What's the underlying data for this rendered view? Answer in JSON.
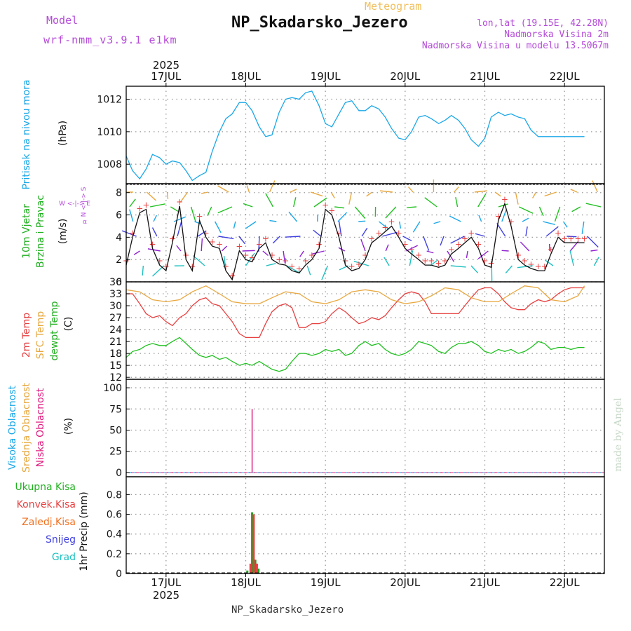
{
  "header": {
    "model_label": "Model",
    "model_name": "wrf-nmm_v3.9.1 e1km",
    "subtitle": "Meteogram",
    "title": "NP_Skadarsko_Jezero",
    "lonlat": "lon,lat (19.15E, 42.28N)",
    "altitude": "Nadmorska Visina 2m",
    "model_altitude": "Nadmorska Visina u modelu 13.5067m"
  },
  "footer": {
    "station": "NP_Skadarsko_Jezero",
    "credit": "made by Angel"
  },
  "time_axis": {
    "year": "2025",
    "day_labels": [
      "17JUL",
      "18JUL",
      "19JUL",
      "20JUL",
      "21JUL",
      "22JUL"
    ],
    "day_positions": [
      0.5,
      1.5,
      2.5,
      3.5,
      4.5,
      5.5
    ],
    "range": [
      0,
      6
    ]
  },
  "panel_labels": {
    "pressure": {
      "name": "Pritisak na nivou mora",
      "unit": "(hPa)"
    },
    "wind": {
      "line1": "10m Vjetar",
      "line2": "Brzina i Pravac",
      "unit": "(m/s)",
      "compass_ns": "N <-|-> S",
      "compass_we": "W <-|-> E",
      "compass_note": "α"
    },
    "temp": {
      "line1": "2m Temp",
      "line2": "SFC Temp",
      "line3": "dewpt Temp",
      "unit": "(C)"
    },
    "cloud": {
      "line1": "Visoka Oblacnost",
      "line2": "Srednja Oblacnost",
      "line3": "Niska Oblacnost",
      "unit": "(%)"
    },
    "precip": {
      "items": [
        "Ukupna Kisa",
        "Konvek.Kisa",
        "Zaledj.Kisa",
        "Snijeg",
        "Grad"
      ],
      "unit": "1hr Precip (mm)"
    }
  },
  "colors": {
    "pressure": "#1aa7e8",
    "temp2m": "#e84040",
    "sfc": "#e8a840",
    "dewpt": "#20c020",
    "high_cloud": "#1aa7e8",
    "mid_cloud": "#e8a840",
    "low_cloud": "#e02080",
    "total_rain": "#20a020",
    "conv_rain": "#e84040",
    "freezing_rain": "#f07020",
    "snow": "#4040e0",
    "hail": "#20c0c0"
  },
  "chart_data": [
    {
      "type": "line",
      "panel": "pressure",
      "ylabel": "(hPa)",
      "yticks": [
        1008,
        1010,
        1012
      ],
      "ylim": [
        1006.8,
        1012.8
      ],
      "series": [
        {
          "name": "Pritisak na nivou mora",
          "x": [
            0,
            0.08,
            0.17,
            0.25,
            0.33,
            0.42,
            0.5,
            0.58,
            0.67,
            0.75,
            0.83,
            0.92,
            1.0,
            1.08,
            1.17,
            1.25,
            1.33,
            1.42,
            1.5,
            1.58,
            1.67,
            1.75,
            1.83,
            1.92,
            2.0,
            2.08,
            2.17,
            2.25,
            2.33,
            2.42,
            2.5,
            2.58,
            2.67,
            2.75,
            2.83,
            2.92,
            3.0,
            3.08,
            3.17,
            3.25,
            3.33,
            3.42,
            3.5,
            3.58,
            3.67,
            3.75,
            3.83,
            3.92,
            4.0,
            4.08,
            4.17,
            4.25,
            4.33,
            4.42,
            4.5,
            4.58,
            4.67,
            4.75,
            4.83,
            4.92,
            5.0,
            5.08,
            5.17,
            5.25,
            5.33,
            5.42,
            5.5,
            5.58,
            5.67,
            5.75
          ],
          "y": [
            1008.5,
            1007.6,
            1007.1,
            1007.7,
            1008.6,
            1008.4,
            1008.0,
            1008.2,
            1008.1,
            1007.6,
            1007.0,
            1007.3,
            1007.5,
            1008.8,
            1010.0,
            1010.8,
            1011.1,
            1011.8,
            1011.8,
            1011.3,
            1010.3,
            1009.7,
            1009.8,
            1011.2,
            1012.0,
            1012.1,
            1012.0,
            1012.4,
            1012.5,
            1011.6,
            1010.5,
            1010.3,
            1011.1,
            1011.8,
            1011.9,
            1011.3,
            1011.3,
            1011.6,
            1011.4,
            1010.9,
            1010.2,
            1009.6,
            1009.5,
            1010.0,
            1010.9,
            1011.0,
            1010.8,
            1010.5,
            1010.7,
            1011.0,
            1010.7,
            1010.2,
            1009.5,
            1009.1,
            1009.6,
            1010.9,
            1011.2,
            1011.0,
            1011.1,
            1010.9,
            1010.8,
            1010.1,
            1009.7,
            1009.7,
            1009.7,
            1009.7,
            1009.7,
            1009.7,
            1009.7,
            1009.7
          ]
        }
      ]
    },
    {
      "type": "line",
      "panel": "wind",
      "ylabel": "(m/s)",
      "yticks": [
        0,
        2,
        4,
        6,
        8
      ],
      "ylim": [
        0,
        8.8
      ],
      "series": [
        {
          "name": "10m Vjetar Brzina i Pravac",
          "x": [
            0,
            0.08,
            0.17,
            0.25,
            0.33,
            0.42,
            0.5,
            0.58,
            0.67,
            0.75,
            0.83,
            0.92,
            1.0,
            1.08,
            1.17,
            1.25,
            1.33,
            1.42,
            1.5,
            1.58,
            1.67,
            1.75,
            1.83,
            1.92,
            2.0,
            2.08,
            2.17,
            2.25,
            2.33,
            2.42,
            2.5,
            2.58,
            2.67,
            2.75,
            2.83,
            2.92,
            3.0,
            3.08,
            3.17,
            3.25,
            3.33,
            3.42,
            3.5,
            3.58,
            3.67,
            3.75,
            3.83,
            3.92,
            4.0,
            4.08,
            4.17,
            4.25,
            4.33,
            4.42,
            4.5,
            4.58,
            4.67,
            4.75,
            4.83,
            4.92,
            5.0,
            5.08,
            5.17,
            5.25,
            5.33,
            5.42,
            5.5,
            5.58,
            5.67,
            5.75
          ],
          "y": [
            1.5,
            4.0,
            6.2,
            6.5,
            3.0,
            1.5,
            1.0,
            3.5,
            6.8,
            2.0,
            1.0,
            5.5,
            4.0,
            3.2,
            3.0,
            1.0,
            0.2,
            2.8,
            2.0,
            1.8,
            3.0,
            3.5,
            2.0,
            1.6,
            1.5,
            1.0,
            0.8,
            1.5,
            2.0,
            3.0,
            6.5,
            6.0,
            4.0,
            1.5,
            1.0,
            1.2,
            2.0,
            3.5,
            4.0,
            4.5,
            5.0,
            4.0,
            3.0,
            2.5,
            2.0,
            1.5,
            1.5,
            1.3,
            1.5,
            2.5,
            3.0,
            3.5,
            4.0,
            3.0,
            1.5,
            1.3,
            5.5,
            7.0,
            5.0,
            2.0,
            1.5,
            1.2,
            1.0,
            1.0,
            2.5,
            4.0,
            3.5,
            3.5,
            3.5,
            3.5
          ]
        }
      ]
    },
    {
      "type": "line",
      "panel": "temperature",
      "ylabel": "(C)",
      "yticks": [
        12,
        15,
        18,
        21,
        24,
        27,
        30,
        33,
        36
      ],
      "ylim": [
        11.5,
        36
      ],
      "series": [
        {
          "name": "2m Temp",
          "x": [
            0,
            0.08,
            0.17,
            0.25,
            0.33,
            0.42,
            0.5,
            0.58,
            0.67,
            0.75,
            0.83,
            0.92,
            1.0,
            1.08,
            1.17,
            1.25,
            1.33,
            1.42,
            1.5,
            1.58,
            1.67,
            1.75,
            1.83,
            1.92,
            2.0,
            2.08,
            2.17,
            2.25,
            2.33,
            2.42,
            2.5,
            2.58,
            2.67,
            2.75,
            2.83,
            2.92,
            3.0,
            3.08,
            3.17,
            3.25,
            3.33,
            3.42,
            3.5,
            3.58,
            3.67,
            3.75,
            3.83,
            3.92,
            4.0,
            4.08,
            4.17,
            4.25,
            4.33,
            4.42,
            4.5,
            4.58,
            4.67,
            4.75,
            4.83,
            4.92,
            5.0,
            5.08,
            5.17,
            5.25,
            5.33,
            5.42,
            5.5,
            5.58,
            5.67,
            5.75
          ],
          "y": [
            33,
            33,
            30.5,
            28,
            27,
            27.5,
            26,
            25,
            27,
            28,
            30,
            31.5,
            32,
            30.5,
            30,
            28,
            26,
            23,
            22,
            22,
            22,
            25.5,
            28.5,
            30,
            30.5,
            29.5,
            24.5,
            24.5,
            25.5,
            25.5,
            26,
            28,
            29.5,
            28.5,
            27,
            25.5,
            26,
            27,
            26.5,
            27.5,
            29.5,
            31.5,
            33,
            33.5,
            33,
            31,
            28,
            28,
            28,
            28,
            28,
            30,
            32,
            34,
            34.5,
            34.5,
            33,
            31,
            29.5,
            29,
            29,
            30.5,
            31.5,
            31,
            31.5,
            33,
            34,
            34.5,
            34.5,
            34.5
          ]
        },
        {
          "name": "SFC Temp",
          "x": [
            0,
            0.17,
            0.33,
            0.5,
            0.67,
            0.83,
            1.0,
            1.17,
            1.33,
            1.5,
            1.67,
            1.83,
            2.0,
            2.17,
            2.33,
            2.5,
            2.67,
            2.83,
            3.0,
            3.17,
            3.33,
            3.5,
            3.67,
            3.83,
            4.0,
            4.17,
            4.33,
            4.5,
            4.67,
            4.83,
            5.0,
            5.17,
            5.33,
            5.5,
            5.67,
            5.75
          ],
          "y": [
            34,
            33.5,
            31.5,
            31,
            31.5,
            33.5,
            35,
            33,
            31,
            30.5,
            30.5,
            32,
            33.5,
            33,
            31,
            30.5,
            31.5,
            33.5,
            34,
            33.5,
            31.5,
            30.5,
            31,
            32.5,
            34.5,
            34,
            32,
            31,
            31,
            33,
            35,
            34.5,
            31.5,
            31,
            32.5,
            35
          ]
        },
        {
          "name": "dewpt Temp",
          "x": [
            0,
            0.08,
            0.17,
            0.25,
            0.33,
            0.42,
            0.5,
            0.58,
            0.67,
            0.75,
            0.83,
            0.92,
            1.0,
            1.08,
            1.17,
            1.25,
            1.33,
            1.42,
            1.5,
            1.58,
            1.67,
            1.75,
            1.83,
            1.92,
            2.0,
            2.08,
            2.17,
            2.25,
            2.33,
            2.42,
            2.5,
            2.58,
            2.67,
            2.75,
            2.83,
            2.92,
            3.0,
            3.08,
            3.17,
            3.25,
            3.33,
            3.42,
            3.5,
            3.58,
            3.67,
            3.75,
            3.83,
            3.92,
            4.0,
            4.08,
            4.17,
            4.25,
            4.33,
            4.42,
            4.5,
            4.58,
            4.67,
            4.75,
            4.83,
            4.92,
            5.0,
            5.08,
            5.17,
            5.25,
            5.33,
            5.42,
            5.5,
            5.58,
            5.67,
            5.75
          ],
          "y": [
            17,
            18.5,
            19,
            20,
            20.5,
            20,
            20,
            21,
            22,
            20.5,
            19,
            17.5,
            17,
            17.5,
            16.5,
            17,
            16,
            15,
            15.5,
            15,
            16,
            15,
            14,
            13.5,
            14,
            16,
            18,
            18,
            17.5,
            18,
            19,
            18.5,
            19,
            17.5,
            18,
            20,
            21,
            20,
            20.5,
            19,
            18,
            17.5,
            18,
            19,
            21,
            20.5,
            20,
            18.5,
            18,
            19.5,
            20.5,
            20.5,
            21,
            20,
            18.5,
            18,
            19,
            18.5,
            19,
            18,
            18.5,
            19.5,
            21,
            20.5,
            19,
            19.5,
            19.5,
            19,
            19.5,
            19.5
          ]
        }
      ]
    },
    {
      "type": "bar",
      "panel": "cloud",
      "ylabel": "(%)",
      "yticks": [
        0,
        25,
        50,
        75,
        100
      ],
      "ylim": [
        -5,
        110
      ],
      "series": [
        {
          "name": "Niska Oblacnost",
          "x": [
            1.58
          ],
          "values": [
            75
          ]
        },
        {
          "name": "Visoka Oblacnost",
          "x": [],
          "values": []
        },
        {
          "name": "Srednja Oblacnost",
          "x": [],
          "values": []
        }
      ]
    },
    {
      "type": "bar",
      "panel": "precip",
      "ylabel": "1hr Precip (mm)",
      "yticks": [
        0,
        0.2,
        0.4,
        0.6,
        0.8
      ],
      "ylim": [
        0,
        0.98
      ],
      "series": [
        {
          "name": "Ukupna Kisa",
          "x": [
            1.52,
            1.58,
            1.62,
            1.66
          ],
          "values": [
            0.03,
            0.62,
            0.14,
            0.05
          ]
        },
        {
          "name": "Konvek.Kisa",
          "x": [
            1.56,
            1.6,
            1.64
          ],
          "values": [
            0.1,
            0.6,
            0.1
          ]
        }
      ]
    }
  ]
}
